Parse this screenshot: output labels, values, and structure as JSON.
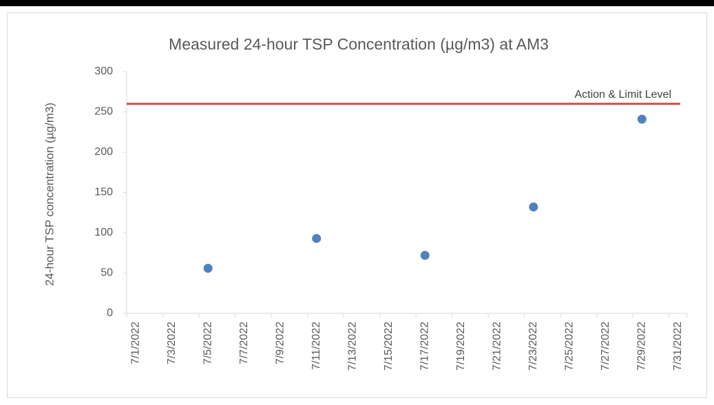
{
  "chart_data": {
    "type": "scatter",
    "title": "Measured 24-hour TSP Concentration (µg/m3) at AM3",
    "y_label": "24-hour TSP concentration (µg/m3)",
    "x": [
      "7/5/2022",
      "7/11/2022",
      "7/17/2022",
      "7/23/2022",
      "7/29/2022"
    ],
    "values": [
      56,
      93,
      72,
      132,
      241
    ],
    "color": "#4f81bd",
    "xlim": [
      "7/1/2022",
      "7/31/2022"
    ],
    "xticks": [
      "7/1/2022",
      "7/3/2022",
      "7/5/2022",
      "7/7/2022",
      "7/9/2022",
      "7/11/2022",
      "7/13/2022",
      "7/15/2022",
      "7/17/2022",
      "7/19/2022",
      "7/21/2022",
      "7/23/2022",
      "7/25/2022",
      "7/27/2022",
      "7/29/2022",
      "7/31/2022"
    ],
    "ylim": [
      0,
      300
    ],
    "yticks": [
      0,
      50,
      100,
      150,
      200,
      250,
      300
    ],
    "threshold": {
      "label": "Action & Limit Level",
      "value": 260,
      "color": "#c0504d"
    }
  }
}
